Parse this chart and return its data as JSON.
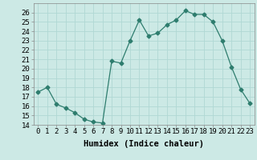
{
  "x": [
    0,
    1,
    2,
    3,
    4,
    5,
    6,
    7,
    8,
    9,
    10,
    11,
    12,
    13,
    14,
    15,
    16,
    17,
    18,
    19,
    20,
    21,
    22,
    23
  ],
  "y": [
    17.5,
    18.0,
    16.2,
    15.8,
    15.3,
    14.6,
    14.3,
    14.2,
    20.8,
    20.6,
    23.0,
    25.2,
    23.5,
    23.8,
    24.7,
    25.2,
    26.2,
    25.8,
    25.8,
    25.0,
    23.0,
    20.2,
    17.8,
    16.3
  ],
  "line_color": "#2e7d6e",
  "marker": "D",
  "marker_size": 2.5,
  "bg_color": "#cce9e5",
  "grid_color": "#b0d8d4",
  "xlabel": "Humidex (Indice chaleur)",
  "ylim": [
    14,
    27
  ],
  "xlim": [
    -0.5,
    23.5
  ],
  "yticks": [
    14,
    15,
    16,
    17,
    18,
    19,
    20,
    21,
    22,
    23,
    24,
    25,
    26
  ],
  "xticks": [
    0,
    1,
    2,
    3,
    4,
    5,
    6,
    7,
    8,
    9,
    10,
    11,
    12,
    13,
    14,
    15,
    16,
    17,
    18,
    19,
    20,
    21,
    22,
    23
  ],
  "xlabel_fontsize": 7.5,
  "tick_fontsize": 6.5
}
